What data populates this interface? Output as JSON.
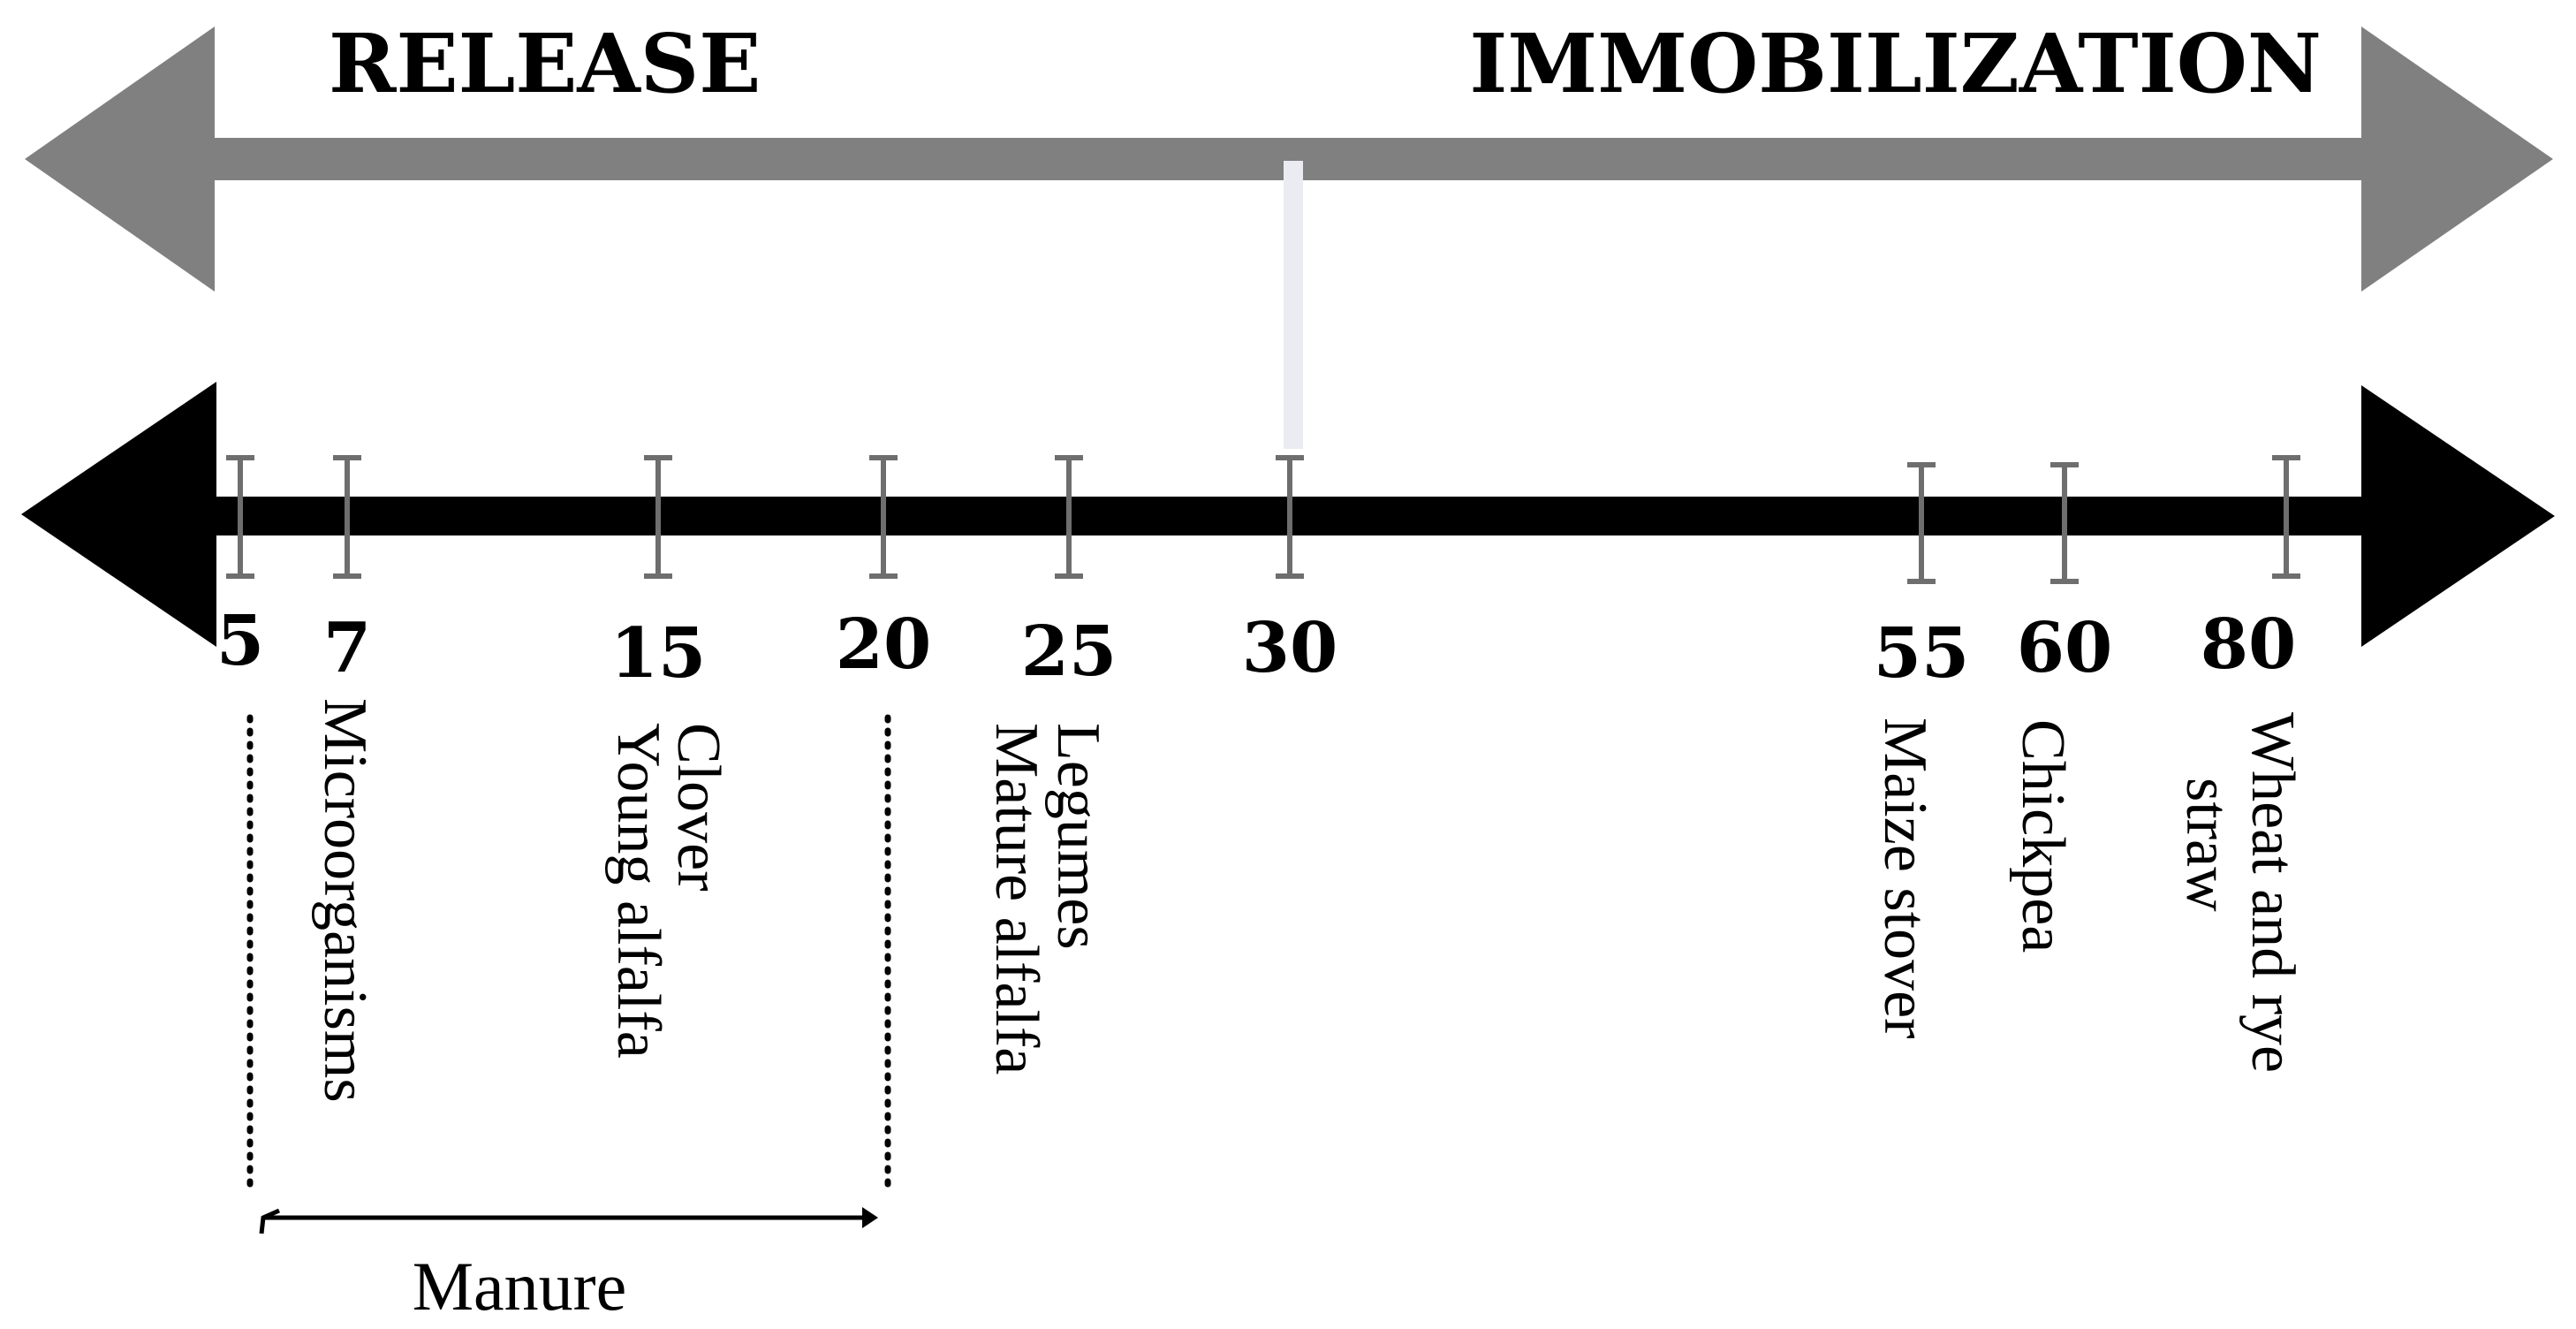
{
  "headings": {
    "release": "RELEASE",
    "immobilization": "IMMOBILIZATION"
  },
  "scale_points": [
    {
      "value": "5",
      "labels": []
    },
    {
      "value": "7",
      "labels": [
        "Microorganisms"
      ]
    },
    {
      "value": "15",
      "labels": [
        "Clover",
        "Young alfalfa"
      ]
    },
    {
      "value": "20",
      "labels": []
    },
    {
      "value": "25",
      "labels": [
        "Legumes",
        "Mature alfalfa"
      ]
    },
    {
      "value": "30",
      "labels": []
    },
    {
      "value": "55",
      "labels": [
        "Maize stover"
      ]
    },
    {
      "value": "60",
      "labels": [
        "Chickpea"
      ]
    },
    {
      "value": "80",
      "labels": [
        "Wheat and rye",
        "straw"
      ]
    }
  ],
  "range": {
    "label": "Manure",
    "from": "5",
    "to": "20"
  },
  "colors": {
    "top_arrow": "#808080",
    "axis_arrow": "#000000",
    "tick": "#6e6e6e",
    "divider": "#ebebf2"
  }
}
